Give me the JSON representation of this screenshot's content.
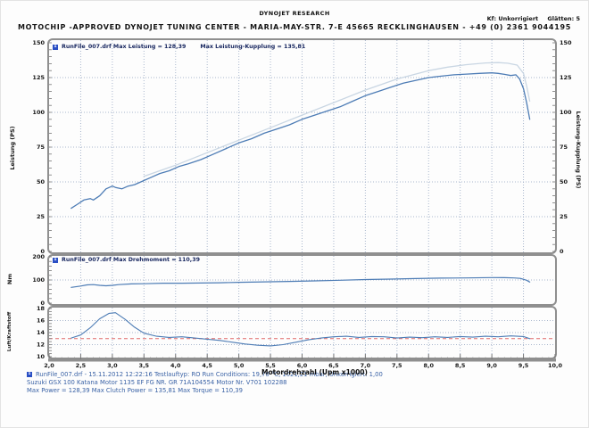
{
  "header": {
    "brand": "DYNOJET RESEARCH",
    "address": "MOTOCHIP -APPROVED  DYNOJET TUNING CENTER - MARIA-MAY-STR. 7-E 45665 RECKLINGHAUSEN - +49 (0) 2361 9044195",
    "correction": "Kf: Unkorrigiert",
    "smoothing": "Glätten: 5"
  },
  "footer": {
    "run_marker": "1",
    "line1": "RunFile_007.drf - 15.11.2012 12:22:16  Testlauftyp: RO  Run Conditions: 19,70 °C, 1021,21 mbar,  Unkorrigiert: 1,00",
    "line2": "Suzuki GSX 100 Katana Motor 1135 EF FG NR. GR 71A104554 Motor Nr. V701 102288",
    "line3": "Max Power = 128,39  Max Clutch Power = 135,81  Max Torque = 110,39"
  },
  "chart_data": [
    {
      "type": "line",
      "panel": "power",
      "legend_left": "RunFile_007.drf Max Leistung = 128,39",
      "legend_right": "Max Leistung-Kupplung = 135,81",
      "xlabel": "Motordrehzahl (Upm x1000)",
      "ylabel_left": "Leistung (PS)",
      "ylabel_right": "Leistung-Kupplung (PS)",
      "xlim": [
        2,
        10
      ],
      "ylim": [
        0,
        150
      ],
      "xticks": [
        2,
        2.5,
        3,
        3.5,
        4,
        4.5,
        5,
        5.5,
        6,
        6.5,
        7,
        7.5,
        8,
        8.5,
        9,
        9.5,
        10
      ],
      "xtick_labels": [
        "2,0",
        "2,5",
        "3,0",
        "3,5",
        "4,0",
        "4,5",
        "5,0",
        "5,5",
        "6,0",
        "6,5",
        "7,0",
        "7,5",
        "8,0",
        "8,5",
        "9,0",
        "9,5",
        "10,0"
      ],
      "yticks": [
        0,
        25,
        50,
        75,
        100,
        125,
        150
      ],
      "ytick_labels": [
        "0",
        "25",
        "50",
        "75",
        "100",
        "125",
        "150"
      ],
      "grid": "dotted",
      "series": [
        {
          "name": "Leistung (PS)",
          "max": 128.39,
          "color": "#4d7cb5",
          "width": 1.3,
          "x": [
            2.35,
            2.45,
            2.55,
            2.65,
            2.7,
            2.8,
            2.9,
            3.0,
            3.05,
            3.15,
            3.25,
            3.35,
            3.45,
            3.6,
            3.75,
            3.9,
            4.05,
            4.2,
            4.4,
            4.6,
            4.8,
            5.0,
            5.2,
            5.4,
            5.6,
            5.8,
            6.0,
            6.2,
            6.4,
            6.6,
            6.8,
            7.0,
            7.2,
            7.4,
            7.6,
            7.8,
            8.0,
            8.2,
            8.4,
            8.6,
            8.8,
            9.0,
            9.1,
            9.2,
            9.3,
            9.38,
            9.44,
            9.5,
            9.55,
            9.6
          ],
          "y": [
            31,
            34,
            37,
            38,
            37,
            40,
            45,
            47,
            46,
            45,
            47,
            48,
            50,
            53,
            56,
            58,
            61,
            63,
            66,
            70,
            74,
            78,
            81,
            85,
            88,
            91,
            95,
            98,
            101,
            104,
            108,
            112,
            115,
            118,
            121,
            123,
            125,
            126,
            127,
            127.5,
            128,
            128.4,
            128,
            127.3,
            126.5,
            127,
            124,
            117,
            107,
            95
          ]
        },
        {
          "name": "Leistung-Kupplung (PS)",
          "max": 135.81,
          "color": "#c9d6e3",
          "width": 1.3,
          "x": [
            3.5,
            4.0,
            4.5,
            5.0,
            5.5,
            6.0,
            6.5,
            7.0,
            7.5,
            8.0,
            8.3,
            8.6,
            8.9,
            9.1,
            9.25,
            9.4,
            9.5,
            9.55,
            9.6
          ],
          "y": [
            54,
            62,
            71,
            80,
            89,
            98,
            107,
            116,
            124,
            130,
            132.5,
            134.3,
            135.5,
            135.8,
            135.3,
            134,
            128,
            119,
            108
          ]
        }
      ]
    },
    {
      "type": "line",
      "panel": "torque",
      "legend": "RunFile_007.drf Max Drehmoment = 110,39",
      "ylabel": "Nm",
      "xlim": [
        2,
        10
      ],
      "ylim": [
        0,
        200
      ],
      "yticks": [
        0,
        100,
        200
      ],
      "ytick_labels": [
        "0",
        "100",
        "200"
      ],
      "grid": "dotted",
      "series": [
        {
          "name": "Drehmoment (Nm)",
          "max": 110.39,
          "color": "#4d7cb5",
          "width": 1.2,
          "x": [
            2.35,
            2.5,
            2.6,
            2.7,
            2.8,
            2.9,
            3.0,
            3.1,
            3.3,
            3.5,
            3.8,
            4.1,
            4.4,
            4.7,
            5.0,
            5.4,
            5.8,
            6.2,
            6.6,
            7.0,
            7.4,
            7.8,
            8.2,
            8.6,
            9.0,
            9.2,
            9.35,
            9.45,
            9.55,
            9.6
          ],
          "y": [
            68,
            74,
            79,
            80,
            77,
            75,
            77,
            80,
            83,
            84,
            86,
            86,
            87,
            88,
            90,
            92,
            94,
            96,
            99,
            102,
            104,
            106,
            108,
            109,
            110.4,
            110,
            109,
            107,
            99,
            91
          ]
        }
      ]
    },
    {
      "type": "line",
      "panel": "air-fuel-ratio",
      "ylabel": "Luft/Kraftstoff",
      "xlim": [
        2,
        10
      ],
      "ylim": [
        10,
        18
      ],
      "yticks": [
        10,
        12,
        14,
        16,
        18
      ],
      "ytick_labels": [
        "10",
        "12",
        "14",
        "16",
        "18"
      ],
      "grid": "dotted",
      "reference_line": {
        "y": 13.0,
        "color": "#e06a6a",
        "style": "dashed"
      },
      "series": [
        {
          "name": "Luft/Kraftstoff",
          "color": "#4d7cb5",
          "width": 1.1,
          "x": [
            2.35,
            2.5,
            2.65,
            2.8,
            2.95,
            3.05,
            3.2,
            3.35,
            3.5,
            3.7,
            3.9,
            4.1,
            4.3,
            4.5,
            4.7,
            4.9,
            5.1,
            5.3,
            5.5,
            5.7,
            5.9,
            6.1,
            6.3,
            6.5,
            6.7,
            6.9,
            7.1,
            7.3,
            7.5,
            7.7,
            7.9,
            8.1,
            8.3,
            8.5,
            8.7,
            8.9,
            9.1,
            9.3,
            9.5,
            9.6
          ],
          "y": [
            13.1,
            13.6,
            14.8,
            16.3,
            17.2,
            17.3,
            16.2,
            14.9,
            13.9,
            13.4,
            13.2,
            13.3,
            13.1,
            12.9,
            12.7,
            12.4,
            12.1,
            11.9,
            11.8,
            12.0,
            12.4,
            12.8,
            13.1,
            13.3,
            13.4,
            13.2,
            13.35,
            13.3,
            13.1,
            13.25,
            13.15,
            13.3,
            13.2,
            13.35,
            13.25,
            13.4,
            13.3,
            13.45,
            13.35,
            13.0
          ]
        }
      ]
    }
  ]
}
